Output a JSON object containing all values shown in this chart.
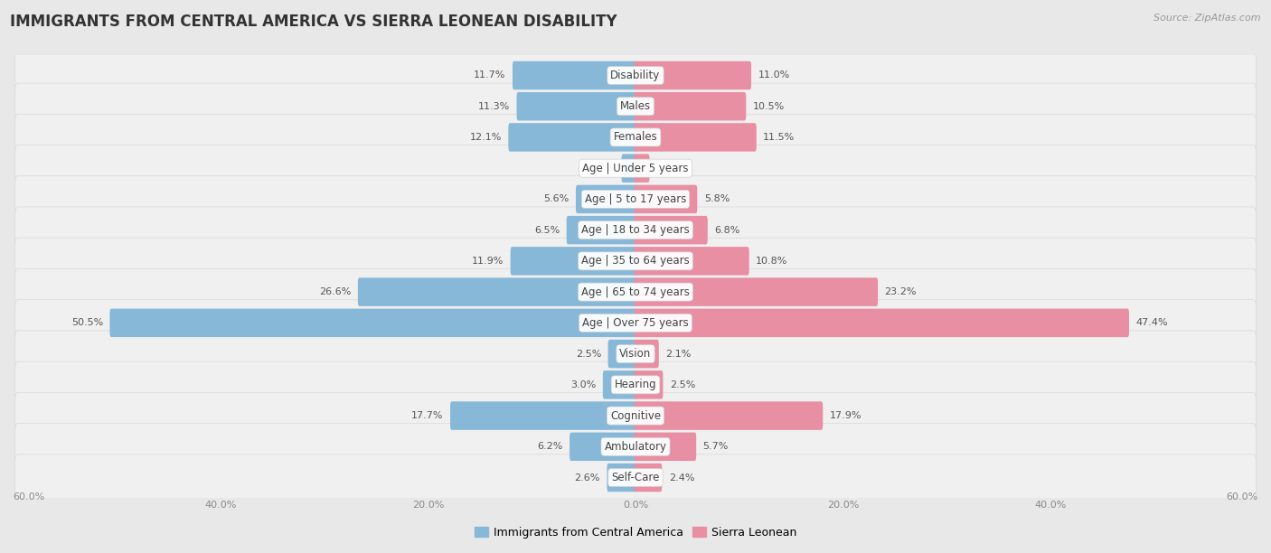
{
  "title": "IMMIGRANTS FROM CENTRAL AMERICA VS SIERRA LEONEAN DISABILITY",
  "source": "Source: ZipAtlas.com",
  "categories": [
    "Disability",
    "Males",
    "Females",
    "Age | Under 5 years",
    "Age | 5 to 17 years",
    "Age | 18 to 34 years",
    "Age | 35 to 64 years",
    "Age | 65 to 74 years",
    "Age | Over 75 years",
    "Vision",
    "Hearing",
    "Cognitive",
    "Ambulatory",
    "Self-Care"
  ],
  "left_values": [
    11.7,
    11.3,
    12.1,
    1.2,
    5.6,
    6.5,
    11.9,
    26.6,
    50.5,
    2.5,
    3.0,
    17.7,
    6.2,
    2.6
  ],
  "right_values": [
    11.0,
    10.5,
    11.5,
    1.2,
    5.8,
    6.8,
    10.8,
    23.2,
    47.4,
    2.1,
    2.5,
    17.9,
    5.7,
    2.4
  ],
  "left_color": "#88b8d8",
  "right_color": "#e88fa4",
  "left_label": "Immigrants from Central America",
  "right_label": "Sierra Leonean",
  "axis_max": 60.0,
  "page_bg": "#e8e8e8",
  "row_bg": "#f5f5f5",
  "title_fontsize": 12,
  "label_fontsize": 8.5,
  "value_fontsize": 8,
  "legend_fontsize": 9,
  "source_fontsize": 8
}
